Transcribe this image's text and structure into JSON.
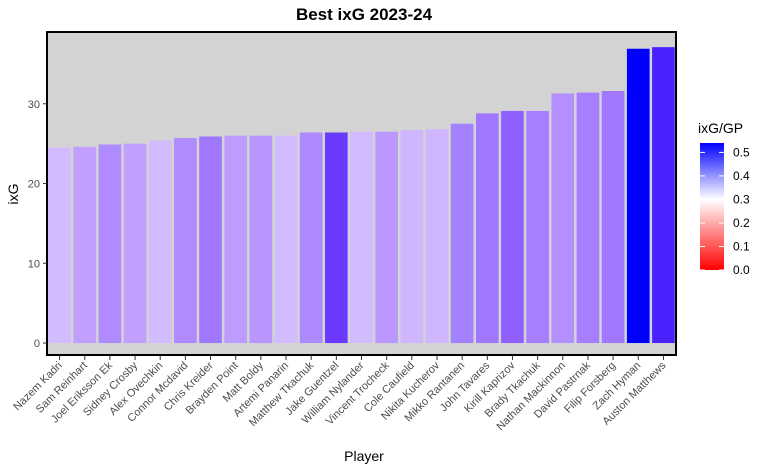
{
  "chart_data": {
    "type": "bar",
    "title": "Best ixG 2023-24",
    "xlabel": "Player",
    "ylabel": "ixG",
    "ylim": [
      -1.5,
      39
    ],
    "yticks": [
      0,
      10,
      20,
      30
    ],
    "grid": false,
    "legend": {
      "title": "ixG/GP",
      "placement": "right",
      "ticks": [
        "0.0",
        "0.1",
        "0.2",
        "0.3",
        "0.4",
        "0.5"
      ],
      "range": [
        0.0,
        0.54
      ],
      "low_color": "#ff0000",
      "mid_color": "#ffffff",
      "high_color": "#0000ff"
    },
    "panel_color": "#d3d3d3",
    "categories": [
      "Nazem Kadri",
      "Sam Reinhart",
      "Joel Eriksson Ek",
      "Sidney Crosby",
      "Alex Ovechkin",
      "Connor Mcdavid",
      "Chris Kreider",
      "Brayden Point",
      "Matt Boldy",
      "Artemi Panarin",
      "Matthew Tkachuk",
      "Jake Guentzel",
      "William Nylander",
      "Vincent Trocheck",
      "Cole Caufield",
      "Nikita Kucherov",
      "Mikko Rantanen",
      "John Tavares",
      "Kirill Kaprizov",
      "Brady Tkachuk",
      "Nathan Mackinnon",
      "David Pastrnak",
      "Filip Forsberg",
      "Zach Hyman",
      "Auston Matthews"
    ],
    "values": [
      24.5,
      24.6,
      24.9,
      25.0,
      25.4,
      25.7,
      25.9,
      26.0,
      26.0,
      26.0,
      26.4,
      26.4,
      26.5,
      26.5,
      26.7,
      26.8,
      27.5,
      28.8,
      29.1,
      29.1,
      31.3,
      31.4,
      31.6,
      36.9,
      37.1
    ],
    "ixg_per_gp": [
      0.32,
      0.345,
      0.37,
      0.345,
      0.32,
      0.37,
      0.39,
      0.35,
      0.355,
      0.32,
      0.37,
      0.46,
      0.32,
      0.35,
      0.33,
      0.33,
      0.385,
      0.39,
      0.41,
      0.38,
      0.36,
      0.38,
      0.39,
      0.54,
      0.5
    ],
    "colors": [
      "#d3bbff",
      "#c19fff",
      "#af8bff",
      "#c19fff",
      "#d3bbff",
      "#af8bff",
      "#a077ff",
      "#bd9cff",
      "#b895ff",
      "#d3bbff",
      "#ad89ff",
      "#6a3bff",
      "#d3bbff",
      "#ba98ff",
      "#d0b5ff",
      "#d0b5ff",
      "#a381ff",
      "#a077ff",
      "#8f5fff",
      "#a57fff",
      "#b38fff",
      "#a57fff",
      "#a077ff",
      "#0000ff",
      "#4a22ff"
    ]
  }
}
